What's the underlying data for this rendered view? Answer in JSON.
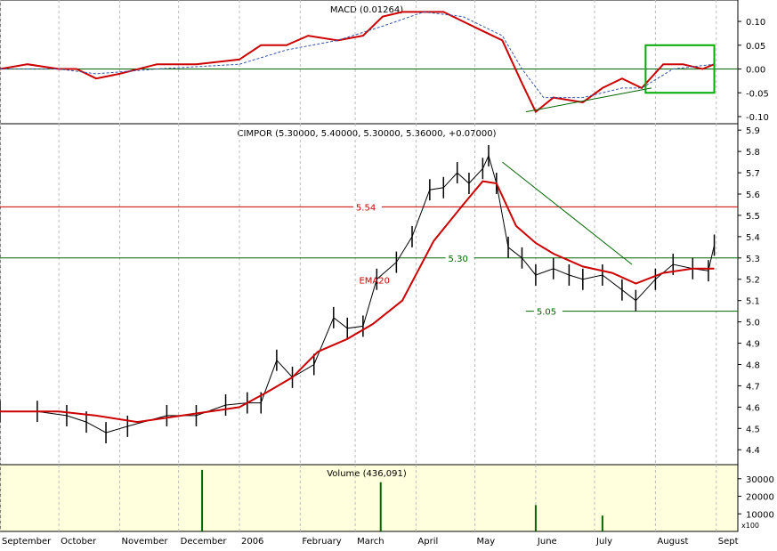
{
  "chart_data": [
    {
      "type": "line",
      "title": "MACD (0.01264)",
      "ylim": [
        -0.115,
        0.145
      ],
      "yticks": [
        0.1,
        0.05,
        0.0,
        -0.05,
        -0.1
      ],
      "ytick_labels": [
        "0.10",
        "0.05",
        "0.00",
        "-0.05",
        "-0.10"
      ],
      "x_months": [
        "Sep",
        "Oct",
        "Nov",
        "Dec",
        "Jan",
        "Feb",
        "Mar",
        "Apr",
        "May",
        "Jun",
        "Jul",
        "Aug",
        "Sep"
      ],
      "series": [
        {
          "color": "#cc0000",
          "x": [
            "2005-09-01",
            "2005-09-15",
            "2005-10-01",
            "2005-10-10",
            "2005-10-20",
            "2005-11-01",
            "2005-11-20",
            "2005-12-10",
            "2006-01-01",
            "2006-01-12",
            "2006-01-25",
            "2006-02-05",
            "2006-02-20",
            "2006-03-05",
            "2006-03-15",
            "2006-03-25",
            "2006-04-05",
            "2006-04-15",
            "2006-04-25",
            "2006-05-05",
            "2006-05-15",
            "2006-05-25",
            "2006-06-01",
            "2006-06-10",
            "2006-06-25",
            "2006-07-05",
            "2006-07-15",
            "2006-07-25",
            "2006-08-05",
            "2006-08-15",
            "2006-08-25",
            "2006-08-31"
          ],
          "values": [
            0.0,
            0.01,
            0.0,
            0.0,
            -0.02,
            -0.01,
            0.01,
            0.01,
            0.02,
            0.05,
            0.05,
            0.07,
            0.06,
            0.07,
            0.11,
            0.12,
            0.12,
            0.12,
            0.1,
            0.08,
            0.06,
            -0.03,
            -0.09,
            -0.06,
            -0.07,
            -0.04,
            -0.02,
            -0.04,
            0.01,
            0.01,
            0.0,
            0.01
          ]
        },
        {
          "color": "#3355aa",
          "style": "dashed",
          "x": [
            "2005-09-01",
            "2005-10-01",
            "2005-10-20",
            "2005-11-20",
            "2006-01-01",
            "2006-01-25",
            "2006-02-20",
            "2006-03-15",
            "2006-04-05",
            "2006-04-25",
            "2006-05-15",
            "2006-05-25",
            "2006-06-05",
            "2006-06-25",
            "2006-07-15",
            "2006-07-25",
            "2006-08-10",
            "2006-08-31"
          ],
          "values": [
            0.0,
            0.0,
            -0.01,
            0.0,
            0.01,
            0.04,
            0.06,
            0.09,
            0.12,
            0.11,
            0.07,
            0.0,
            -0.06,
            -0.06,
            -0.04,
            -0.04,
            0.0,
            0.01
          ]
        }
      ],
      "zero_line": 0.0,
      "annotations": [
        {
          "type": "trendline",
          "from": [
            "2006-05-27",
            -0.09
          ],
          "to": [
            "2006-07-30",
            -0.04
          ],
          "color": "#006600"
        },
        {
          "type": "highlight_box",
          "from": [
            "2006-07-27",
            0.05
          ],
          "to": [
            "2006-08-31",
            -0.05
          ],
          "color": "#00aa00"
        }
      ]
    },
    {
      "type": "bar",
      "title": "CIMPOR (5.30000, 5.40000, 5.30000, 5.36000, +0.07000)",
      "ylim": [
        4.33,
        5.93
      ],
      "yticks": [
        5.9,
        5.8,
        5.7,
        5.6,
        5.5,
        5.4,
        5.3,
        5.2,
        5.1,
        5.0,
        4.9,
        4.8,
        4.7,
        4.6,
        4.5,
        4.4
      ],
      "ytick_labels": [
        "5.9",
        "5.8",
        "5.7",
        "5.6",
        "5.5",
        "5.4",
        "5.3",
        "5.2",
        "5.1",
        "5.0",
        "4.9",
        "4.8",
        "4.7",
        "4.6",
        "4.5",
        "4.4"
      ],
      "price_x": [
        "2005-09-01",
        "2005-09-20",
        "2005-10-05",
        "2005-10-15",
        "2005-10-25",
        "2005-11-05",
        "2005-11-25",
        "2005-12-10",
        "2005-12-25",
        "2006-01-05",
        "2006-01-12",
        "2006-01-20",
        "2006-01-28",
        "2006-02-08",
        "2006-02-18",
        "2006-02-25",
        "2006-03-05",
        "2006-03-12",
        "2006-03-22",
        "2006-03-30",
        "2006-04-08",
        "2006-04-15",
        "2006-04-22",
        "2006-04-28",
        "2006-05-05",
        "2006-05-08",
        "2006-05-12",
        "2006-05-18",
        "2006-05-25",
        "2006-06-01",
        "2006-06-10",
        "2006-06-18",
        "2006-06-25",
        "2006-07-05",
        "2006-07-15",
        "2006-07-22",
        "2006-08-01",
        "2006-08-10",
        "2006-08-20",
        "2006-08-28",
        "2006-08-31"
      ],
      "price_values": [
        4.58,
        4.58,
        4.56,
        4.53,
        4.48,
        4.51,
        4.56,
        4.56,
        4.61,
        4.62,
        4.62,
        4.82,
        4.74,
        4.8,
        5.02,
        4.97,
        4.98,
        5.2,
        5.28,
        5.4,
        5.62,
        5.63,
        5.7,
        5.65,
        5.72,
        5.78,
        5.65,
        5.35,
        5.3,
        5.22,
        5.25,
        5.22,
        5.2,
        5.22,
        5.15,
        5.1,
        5.2,
        5.27,
        5.25,
        5.24,
        5.36
      ],
      "series": [
        {
          "name": "EMA20",
          "color": "#cc0000",
          "x": [
            "2005-09-01",
            "2005-10-01",
            "2005-10-20",
            "2005-11-10",
            "2005-12-10",
            "2006-01-01",
            "2006-01-15",
            "2006-01-28",
            "2006-02-10",
            "2006-02-25",
            "2006-03-10",
            "2006-03-25",
            "2006-04-10",
            "2006-04-25",
            "2006-05-05",
            "2006-05-12",
            "2006-05-22",
            "2006-06-01",
            "2006-06-10",
            "2006-06-25",
            "2006-07-10",
            "2006-07-22",
            "2006-08-05",
            "2006-08-20",
            "2006-08-31"
          ],
          "values": [
            4.58,
            4.58,
            4.56,
            4.53,
            4.57,
            4.6,
            4.67,
            4.74,
            4.86,
            4.92,
            4.99,
            5.1,
            5.38,
            5.55,
            5.66,
            5.65,
            5.45,
            5.37,
            5.32,
            5.26,
            5.23,
            5.18,
            5.23,
            5.25,
            5.25
          ]
        }
      ],
      "hlines": [
        {
          "value": 5.54,
          "label": "5.54",
          "color": "#cc0000"
        },
        {
          "value": 5.3,
          "label": "5.30",
          "color": "#006600"
        },
        {
          "value": 5.05,
          "label": "5.05",
          "color": "#006600",
          "start": "2006-05-27"
        }
      ],
      "annotations": [
        {
          "text": "EMA20",
          "color": "#cc0000"
        },
        {
          "type": "trendline",
          "from": [
            "2006-05-15",
            5.75
          ],
          "to": [
            "2006-07-20",
            5.27
          ],
          "color": "#006600"
        }
      ]
    },
    {
      "type": "bar",
      "title": "Volume (436,091)",
      "ylim": [
        0,
        38000
      ],
      "yticks": [
        30000,
        20000,
        10000
      ],
      "ytick_labels": [
        "30000",
        "20000",
        "10000"
      ],
      "unit_label": "x100",
      "x": [
        "2005-12-13",
        "2006-03-14",
        "2006-06-01",
        "2006-07-05"
      ],
      "values": [
        35000,
        28000,
        15000,
        9000
      ],
      "background": "#ffffdd"
    }
  ],
  "x_axis": {
    "labels": [
      "September",
      "October",
      "November",
      "December",
      "2006",
      "February",
      "March",
      "April",
      "May",
      "June",
      "July",
      "August",
      "Sept"
    ]
  }
}
